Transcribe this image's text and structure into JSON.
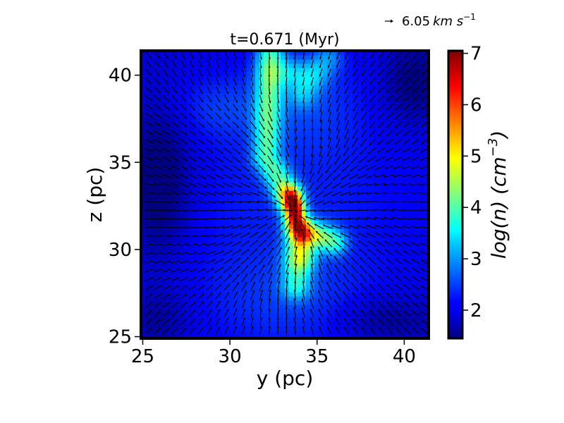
{
  "chart_data": {
    "type": "heatmap",
    "title": "t=0.671 (Myr)",
    "xlabel": "y (pc)",
    "ylabel": "z (pc)",
    "xlim": [
      24.9,
      41.4
    ],
    "ylim": [
      24.9,
      41.4
    ],
    "xticks": [
      25,
      30,
      35,
      40
    ],
    "yticks": [
      25,
      30,
      35,
      40
    ],
    "colorbar": {
      "label": "log(n) (cm",
      "label_sup": "−3",
      "label_close": ")",
      "min": 1.45,
      "max": 7.05,
      "ticks": [
        2,
        3,
        4,
        5,
        6,
        7
      ],
      "colormap": "jet"
    },
    "quiver_key": {
      "value": "6.05",
      "unit": "km s",
      "unit_sup": "−1"
    },
    "density_features": [
      {
        "kind": "background",
        "value": 1.8
      },
      {
        "kind": "diffuse-cloud",
        "value": 3.0
      },
      {
        "kind": "filament",
        "value": 4.3
      },
      {
        "kind": "core",
        "value": 6.6,
        "y": 33.6,
        "z": 32.6
      },
      {
        "kind": "clump",
        "value": 4.0,
        "y": 33.3,
        "z": 40.0
      },
      {
        "kind": "clump",
        "value": 4.2,
        "y": 35.0,
        "z": 30.5
      }
    ],
    "velocity_field": {
      "type": "convergent-flow",
      "center": [
        33.8,
        32.2
      ],
      "grid_spacing_pc": 0.5
    }
  }
}
